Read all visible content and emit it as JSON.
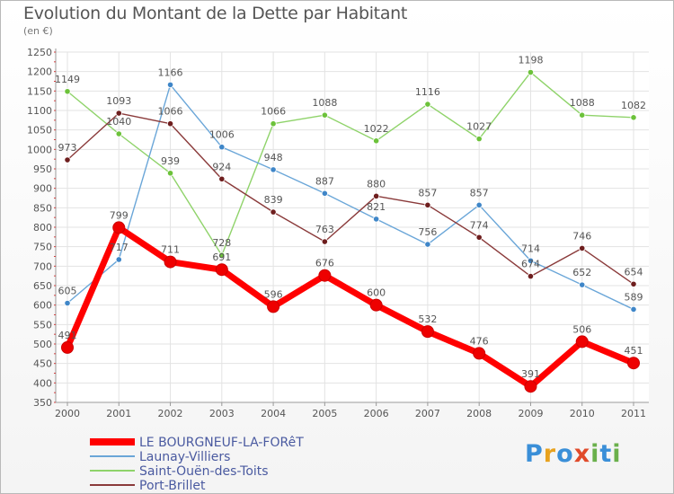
{
  "title": "Evolution du Montant de la Dette par Habitant",
  "subtitle": "(en €)",
  "logo": {
    "letters": [
      "P",
      "r",
      "o",
      "x",
      "i",
      "t",
      "i"
    ],
    "colors": [
      "#3a8fd8",
      "#e8a21e",
      "#3a8fd8",
      "#e04a2a",
      "#6ab04c",
      "#3a8fd8",
      "#6ab04c"
    ]
  },
  "chart_data": {
    "type": "line",
    "title": "Evolution du Montant de la Dette par Habitant",
    "subtitle": "(en €)",
    "xlabel": "",
    "ylabel": "",
    "x": [
      "2000",
      "2001",
      "2002",
      "2003",
      "2004",
      "2005",
      "2006",
      "2007",
      "2008",
      "2009",
      "2010",
      "2011"
    ],
    "ylim": [
      350,
      1250
    ],
    "yticks": [
      350,
      400,
      450,
      500,
      550,
      600,
      650,
      700,
      750,
      800,
      850,
      900,
      950,
      1000,
      1050,
      1100,
      1150,
      1200,
      1250
    ],
    "grid": true,
    "legend_position": "bottom-left",
    "series": [
      {
        "name": "Saint-Ouën-des-Toits",
        "color": "#8fd36a",
        "point_color": "#6cc23a",
        "values": [
          1149,
          1040,
          939,
          728,
          1066,
          1088,
          1022,
          1116,
          1027,
          1198,
          1088,
          1082
        ]
      },
      {
        "name": "Launay-Villiers",
        "color": "#6aa6d8",
        "point_color": "#3f86c8",
        "values": [
          605,
          717,
          1166,
          1006,
          948,
          887,
          821,
          756,
          857,
          714,
          652,
          589
        ]
      },
      {
        "name": "Port-Brillet",
        "color": "#8a3a3a",
        "point_color": "#6e1e1e",
        "values": [
          973,
          1093,
          1066,
          924,
          839,
          763,
          880,
          857,
          774,
          674,
          746,
          654
        ]
      },
      {
        "name": "LE BOURGNEUF-LA-FORêT",
        "color": "#ff0000",
        "point_color": "#ee0000",
        "values": [
          491,
          799,
          711,
          691,
          596,
          676,
          600,
          532,
          476,
          391,
          506,
          451
        ]
      }
    ],
    "legend_order": [
      "LE BOURGNEUF-LA-FORêT",
      "Launay-Villiers",
      "Saint-Ouën-des-Toits",
      "Port-Brillet"
    ]
  }
}
